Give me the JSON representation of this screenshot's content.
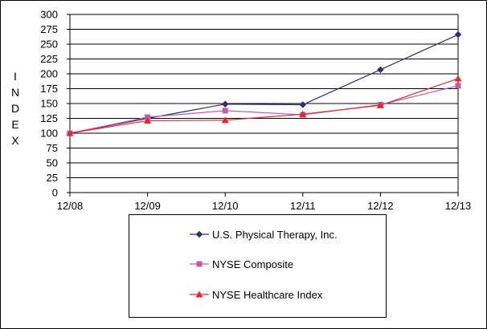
{
  "chart_data": {
    "type": "line",
    "title": "",
    "xlabel": "",
    "ylabel": "INDEX",
    "categories": [
      "12/08",
      "12/09",
      "12/10",
      "12/11",
      "12/12",
      "12/13"
    ],
    "ylim": [
      0,
      300
    ],
    "ytick_step": 25,
    "yticks": [
      "0",
      "25",
      "50",
      "75",
      "100",
      "125",
      "150",
      "175",
      "200",
      "225",
      "250",
      "275",
      "300"
    ],
    "grid": true,
    "legend_placement": "bottom",
    "series": [
      {
        "name": "U.S. Physical Therapy, Inc.",
        "values": [
          100,
          125,
          149,
          148,
          207,
          266
        ],
        "color": "#2b2f7a",
        "marker": "diamond"
      },
      {
        "name": "NYSE Composite",
        "values": [
          100,
          127,
          138,
          131,
          148,
          180
        ],
        "color": "#c45aa8",
        "marker": "square"
      },
      {
        "name": "NYSE Healthcare Index",
        "values": [
          100,
          121,
          122,
          132,
          147,
          192
        ],
        "color": "#e8242c",
        "marker": "triangle"
      }
    ]
  }
}
